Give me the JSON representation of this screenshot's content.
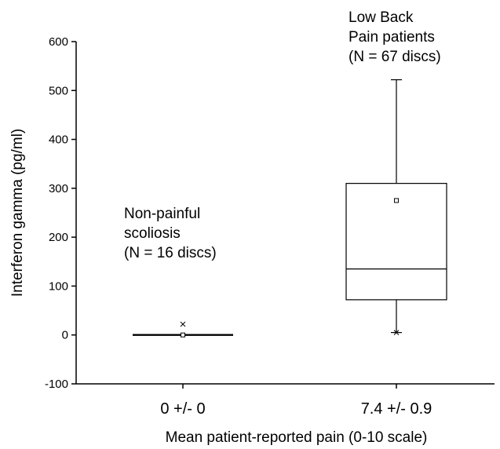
{
  "chart_data": {
    "type": "box",
    "title": "",
    "xlabel": "Mean patient-reported pain (0-10 scale)",
    "ylabel": "Interferon gamma (pg/ml)",
    "ylim": [
      -100,
      600
    ],
    "yticks": [
      -100,
      0,
      100,
      200,
      300,
      400,
      500,
      600
    ],
    "ytick_labels": [
      "-100",
      "0",
      "100",
      "200",
      "300",
      "400",
      "500",
      "600"
    ],
    "grid": false,
    "legend": "none",
    "categories": [
      "0 +/- 0",
      "7.4 +/- 0.9"
    ],
    "boxes": [
      {
        "category": "0 +/- 0",
        "min": 0,
        "q1": 0,
        "median": 0,
        "q3": 0,
        "max": 0,
        "mean": 0,
        "outliers": [
          22
        ],
        "annotation": [
          "Non-painful",
          "scoliosis",
          "(N = 16 discs)"
        ]
      },
      {
        "category": "7.4 +/- 0.9",
        "min": 5,
        "q1": 72,
        "median": 135,
        "q3": 310,
        "max": 522,
        "mean": 275,
        "outliers": [
          5
        ],
        "annotation": [
          "Low Back",
          "Pain patients",
          "(N = 67 discs)"
        ]
      }
    ],
    "colors": {
      "stroke": "#000000",
      "background": "#ffffff"
    }
  }
}
